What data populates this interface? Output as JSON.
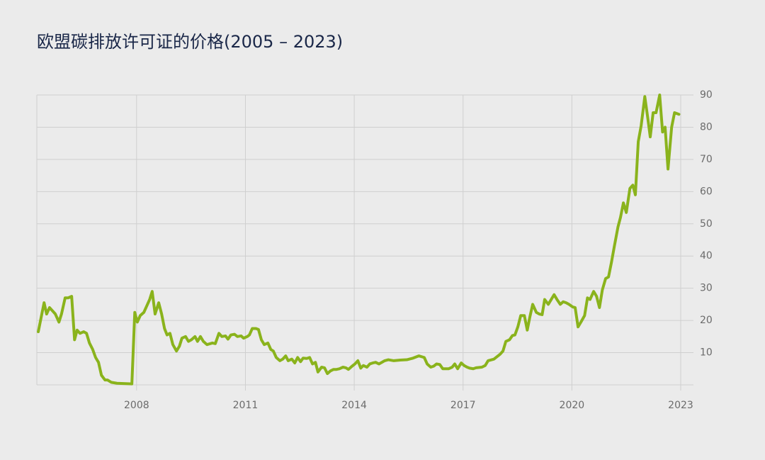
{
  "chart_data": {
    "type": "line",
    "title": "欧盟碳排放许可证的价格(2005 – 2023)",
    "color": "#8ab31c",
    "xlim": [
      2005.25,
      2023
    ],
    "xticks": [
      2008,
      2011,
      2014,
      2017,
      2020,
      2023
    ],
    "ylim": [
      0,
      90
    ],
    "yticks": [
      10,
      20,
      30,
      40,
      50,
      60,
      70,
      80,
      90
    ],
    "grid": true,
    "x": [
      2005.29,
      2005.37,
      2005.45,
      2005.52,
      2005.6,
      2005.76,
      2005.86,
      2005.93,
      2006.03,
      2006.11,
      2006.21,
      2006.29,
      2006.36,
      2006.44,
      2006.54,
      2006.62,
      2006.7,
      2006.79,
      2006.87,
      2006.95,
      2007.03,
      2007.13,
      2007.2,
      2007.3,
      2007.46,
      2007.87,
      2007.95,
      2008.02,
      2008.1,
      2008.2,
      2008.28,
      2008.36,
      2008.43,
      2008.51,
      2008.61,
      2008.69,
      2008.77,
      2008.84,
      2008.92,
      2009.0,
      2009.1,
      2009.18,
      2009.25,
      2009.35,
      2009.43,
      2009.51,
      2009.61,
      2009.68,
      2009.76,
      2009.84,
      2009.94,
      2010.09,
      2010.17,
      2010.27,
      2010.35,
      2010.45,
      2010.52,
      2010.6,
      2010.7,
      2010.78,
      2010.88,
      2010.95,
      2011.05,
      2011.11,
      2011.19,
      2011.29,
      2011.36,
      2011.44,
      2011.52,
      2011.62,
      2011.7,
      2011.77,
      2011.85,
      2011.95,
      2012.03,
      2012.11,
      2012.18,
      2012.28,
      2012.36,
      2012.44,
      2012.52,
      2012.59,
      2012.69,
      2012.77,
      2012.85,
      2012.93,
      2013.0,
      2013.1,
      2013.18,
      2013.26,
      2013.34,
      2013.43,
      2013.51,
      2013.59,
      2013.69,
      2013.77,
      2013.84,
      2013.94,
      2014.02,
      2014.1,
      2014.18,
      2014.25,
      2014.35,
      2014.43,
      2014.51,
      2014.59,
      2014.68,
      2014.76,
      2014.84,
      2014.94,
      2015.09,
      2015.27,
      2015.45,
      2015.62,
      2015.78,
      2015.93,
      2016.01,
      2016.11,
      2016.19,
      2016.27,
      2016.36,
      2016.44,
      2016.6,
      2016.7,
      2016.77,
      2016.85,
      2016.95,
      2017.03,
      2017.11,
      2017.18,
      2017.28,
      2017.36,
      2017.52,
      2017.61,
      2017.69,
      2017.85,
      2018.02,
      2018.1,
      2018.18,
      2018.28,
      2018.36,
      2018.43,
      2018.51,
      2018.59,
      2018.69,
      2018.77,
      2018.84,
      2018.92,
      2019.02,
      2019.1,
      2019.18,
      2019.25,
      2019.35,
      2019.43,
      2019.51,
      2019.59,
      2019.68,
      2019.76,
      2019.84,
      2019.92,
      2020.02,
      2020.09,
      2020.17,
      2020.25,
      2020.35,
      2020.43,
      2020.5,
      2020.6,
      2020.68,
      2020.76,
      2020.84,
      2020.93,
      2021.01,
      2021.09,
      2021.17,
      2021.27,
      2021.34,
      2021.42,
      2021.5,
      2021.6,
      2021.68,
      2021.75,
      2021.83,
      2021.91,
      2022.01,
      2022.09,
      2022.16,
      2022.24,
      2022.32,
      2022.42,
      2022.5,
      2022.57,
      2022.65,
      2022.75,
      2022.83,
      2022.95
    ],
    "values": [
      16.5,
      21,
      25.5,
      22,
      24,
      22,
      19.5,
      22,
      27,
      27,
      27.5,
      14,
      17,
      16,
      16.5,
      16,
      13,
      11,
      8.5,
      7,
      3,
      1.5,
      1.5,
      0.8,
      0.5,
      0.3,
      22.5,
      19.5,
      21.5,
      22.5,
      24.5,
      26.5,
      29,
      22,
      25.5,
      22,
      17.5,
      15.5,
      16,
      12.5,
      10.5,
      12,
      14.5,
      15,
      13.5,
      14,
      15,
      13.5,
      15,
      13.5,
      12.5,
      13,
      12.8,
      16,
      15,
      15.2,
      14.2,
      15.5,
      15.7,
      15,
      15.2,
      14.5,
      15,
      15.5,
      17.5,
      17.5,
      17.2,
      14,
      12.5,
      13,
      11,
      10.5,
      8.5,
      7.5,
      8,
      9,
      7.5,
      8,
      6.8,
      8.5,
      7.2,
      8.3,
      8.2,
      8.5,
      6.5,
      7,
      4,
      5.5,
      5.3,
      3.5,
      4.3,
      4.8,
      4.8,
      5,
      5.5,
      5.3,
      4.8,
      5.8,
      6.5,
      7.5,
      5.2,
      6,
      5.5,
      6.5,
      6.8,
      7,
      6.5,
      7,
      7.5,
      7.8,
      7.5,
      7.7,
      7.8,
      8.3,
      9,
      8.5,
      6.5,
      5.5,
      5.8,
      6.5,
      6.3,
      5,
      5,
      5.5,
      6.5,
      5,
      6.8,
      6,
      5.5,
      5.2,
      5,
      5.3,
      5.5,
      6,
      7.5,
      8,
      9.5,
      10.5,
      13.5,
      14,
      15.3,
      15.5,
      18,
      21.5,
      21.5,
      17,
      21,
      25,
      22.5,
      22,
      21.8,
      26.5,
      25,
      26.5,
      28,
      26.5,
      25,
      25.8,
      25.5,
      25,
      24.2,
      24,
      18,
      19.5,
      21.5,
      27,
      26.5,
      29,
      27.5,
      24,
      29.5,
      33,
      33.5,
      38,
      43,
      49,
      52,
      56.5,
      53.5,
      61,
      62,
      59,
      75.5,
      80.5,
      89.5,
      83,
      77,
      84.5,
      84.5,
      90,
      78.5,
      80,
      67,
      80,
      84.5,
      84
    ]
  }
}
